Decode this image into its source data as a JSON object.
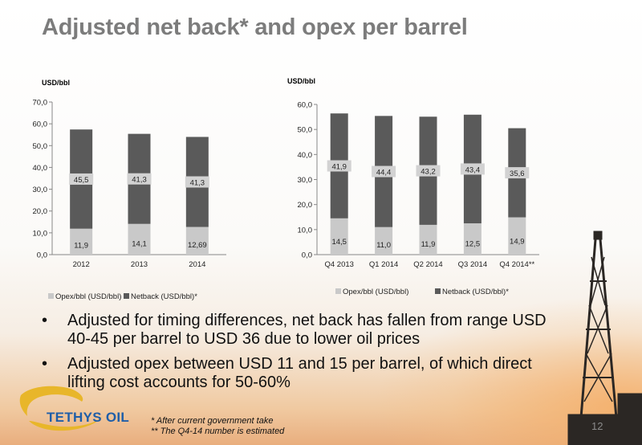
{
  "title": "Adjusted net back* and opex per barrel",
  "colors": {
    "opex": "#c9c9c9",
    "netback": "#5a5a5a",
    "title": "#7c7c7c",
    "logo_blue": "#1f5ea8",
    "logo_gold": "#e8b62a"
  },
  "chart_data": [
    {
      "type": "bar",
      "stacked": true,
      "unit_label": "USD/bbl",
      "categories": [
        "2012",
        "2013",
        "2014"
      ],
      "series": [
        {
          "name": "Opex/bbl (USD/bbl)",
          "values": [
            11.9,
            14.1,
            12.69
          ],
          "labels": [
            "11,9",
            "14,1",
            "12,69"
          ]
        },
        {
          "name": "Netback (USD/bbl)*",
          "values": [
            45.5,
            41.3,
            41.3
          ],
          "labels": [
            "45,5",
            "41,3",
            "41,3"
          ]
        }
      ],
      "ylim": [
        0,
        70
      ],
      "yticks": [
        "0,0",
        "10,0",
        "20,0",
        "30,0",
        "40,0",
        "50,0",
        "60,0",
        "70,0"
      ],
      "legend_position": "bottom-left",
      "grid": false
    },
    {
      "type": "bar",
      "stacked": true,
      "unit_label": "USD/bbl",
      "categories": [
        "Q4 2013",
        "Q1 2014",
        "Q2 2014",
        "Q3 2014",
        "Q4 2014**"
      ],
      "series": [
        {
          "name": "Opex/bbl (USD/bbl)",
          "values": [
            14.5,
            11.0,
            11.9,
            12.5,
            14.9
          ],
          "labels": [
            "14,5",
            "11,0",
            "11,9",
            "12,5",
            "14,9"
          ]
        },
        {
          "name": "Netback (USD/bbl)*",
          "values": [
            41.9,
            44.4,
            43.2,
            43.4,
            35.6
          ],
          "labels": [
            "41,9",
            "44,4",
            "43,2",
            "43,4",
            "35,6"
          ]
        }
      ],
      "ylim": [
        0,
        60
      ],
      "yticks": [
        "0,0",
        "10,0",
        "20,0",
        "30,0",
        "40,0",
        "50,0",
        "60,0"
      ],
      "legend_position": "bottom",
      "grid": false
    }
  ],
  "bullets": [
    "Adjusted for timing differences, net back has fallen from range USD 40-45 per barrel to USD 36 due to lower oil prices",
    "Adjusted opex between USD 11 and 15 per barrel, of which direct lifting cost accounts for 50-60%"
  ],
  "bullet_symbol": "•",
  "logo_text": "TETHYS OIL",
  "footnotes": [
    "* After current government take",
    "** The Q4-14 number is estimated"
  ],
  "page_number": "12"
}
